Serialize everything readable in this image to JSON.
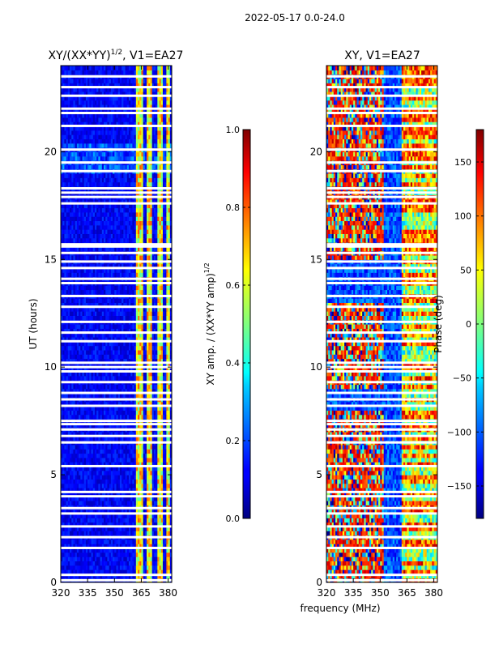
{
  "figure_title": "2022-05-17 0.0-24.0",
  "chart_data": [
    {
      "type": "heatmap",
      "title_main": "XY/(XX*YY)",
      "title_sup": "1/2",
      "title_rest": ", V1=EA27",
      "xlabel": "",
      "ylabel": "UT (hours)",
      "xlim": [
        320,
        382
      ],
      "ylim": [
        0,
        24
      ],
      "xticks": [
        320,
        335,
        350,
        365,
        380
      ],
      "yticks": [
        0,
        5,
        10,
        15,
        20
      ],
      "colorbar": {
        "label_main": "XY amp. / (XX*YY amp)",
        "label_sup": "1/2",
        "range": [
          0.0,
          1.0
        ],
        "ticks": [
          "0.0",
          "0.2",
          "0.4",
          "0.6",
          "0.8",
          "1.0"
        ],
        "tick_values": [
          0.0,
          0.2,
          0.4,
          0.6,
          0.8,
          1.0
        ],
        "colormap": "jet"
      },
      "flagged_hours": [
        0.1,
        0.35,
        1.6,
        2.1,
        2.6,
        3.2,
        3.45,
        4.0,
        4.2,
        5.4,
        6.5,
        6.8,
        7.1,
        7.35,
        7.5,
        8.2,
        8.5,
        8.8,
        9.3,
        9.8,
        10.0,
        10.2,
        11.2,
        11.6,
        12.1,
        12.8,
        13.3,
        13.9,
        14.1,
        14.6,
        14.9,
        15.3,
        15.6,
        15.7,
        17.6,
        17.9,
        18.1,
        18.3,
        19.1,
        19.5,
        20.1,
        21.2,
        21.8,
        22.0,
        22.6,
        23.0,
        23.5
      ],
      "bright_channel_ranges": [
        [
          362,
          366
        ],
        [
          368,
          371
        ],
        [
          374,
          377
        ],
        [
          379,
          381
        ]
      ]
    },
    {
      "type": "heatmap",
      "title_main": "XY, V1=EA27",
      "xlabel": "frequency (MHz)",
      "ylabel": "",
      "xlim": [
        320,
        382
      ],
      "ylim": [
        0,
        24
      ],
      "xticks": [
        320,
        335,
        350,
        365,
        380
      ],
      "yticks": [
        0,
        5,
        10,
        15,
        20
      ],
      "colorbar": {
        "label_main": "Phase (deg)",
        "range": [
          -180,
          180
        ],
        "ticks": [
          "−150",
          "−100",
          "−50",
          "0",
          "50",
          "100",
          "150"
        ],
        "tick_values": [
          -150,
          -100,
          -50,
          0,
          50,
          100,
          150
        ],
        "colormap": "jet"
      },
      "flagged_hours": [
        0.1,
        0.35,
        1.6,
        2.1,
        2.6,
        3.2,
        3.45,
        4.0,
        4.2,
        5.4,
        6.5,
        6.8,
        7.1,
        7.35,
        7.5,
        8.2,
        8.5,
        8.8,
        9.3,
        9.8,
        10.0,
        10.2,
        11.2,
        11.6,
        12.1,
        12.8,
        13.3,
        13.9,
        14.1,
        14.6,
        14.9,
        15.3,
        15.6,
        15.7,
        17.6,
        17.9,
        18.1,
        18.3,
        19.1,
        19.5,
        20.1,
        21.2,
        21.8,
        22.0,
        22.6,
        23.0,
        23.5
      ]
    }
  ]
}
